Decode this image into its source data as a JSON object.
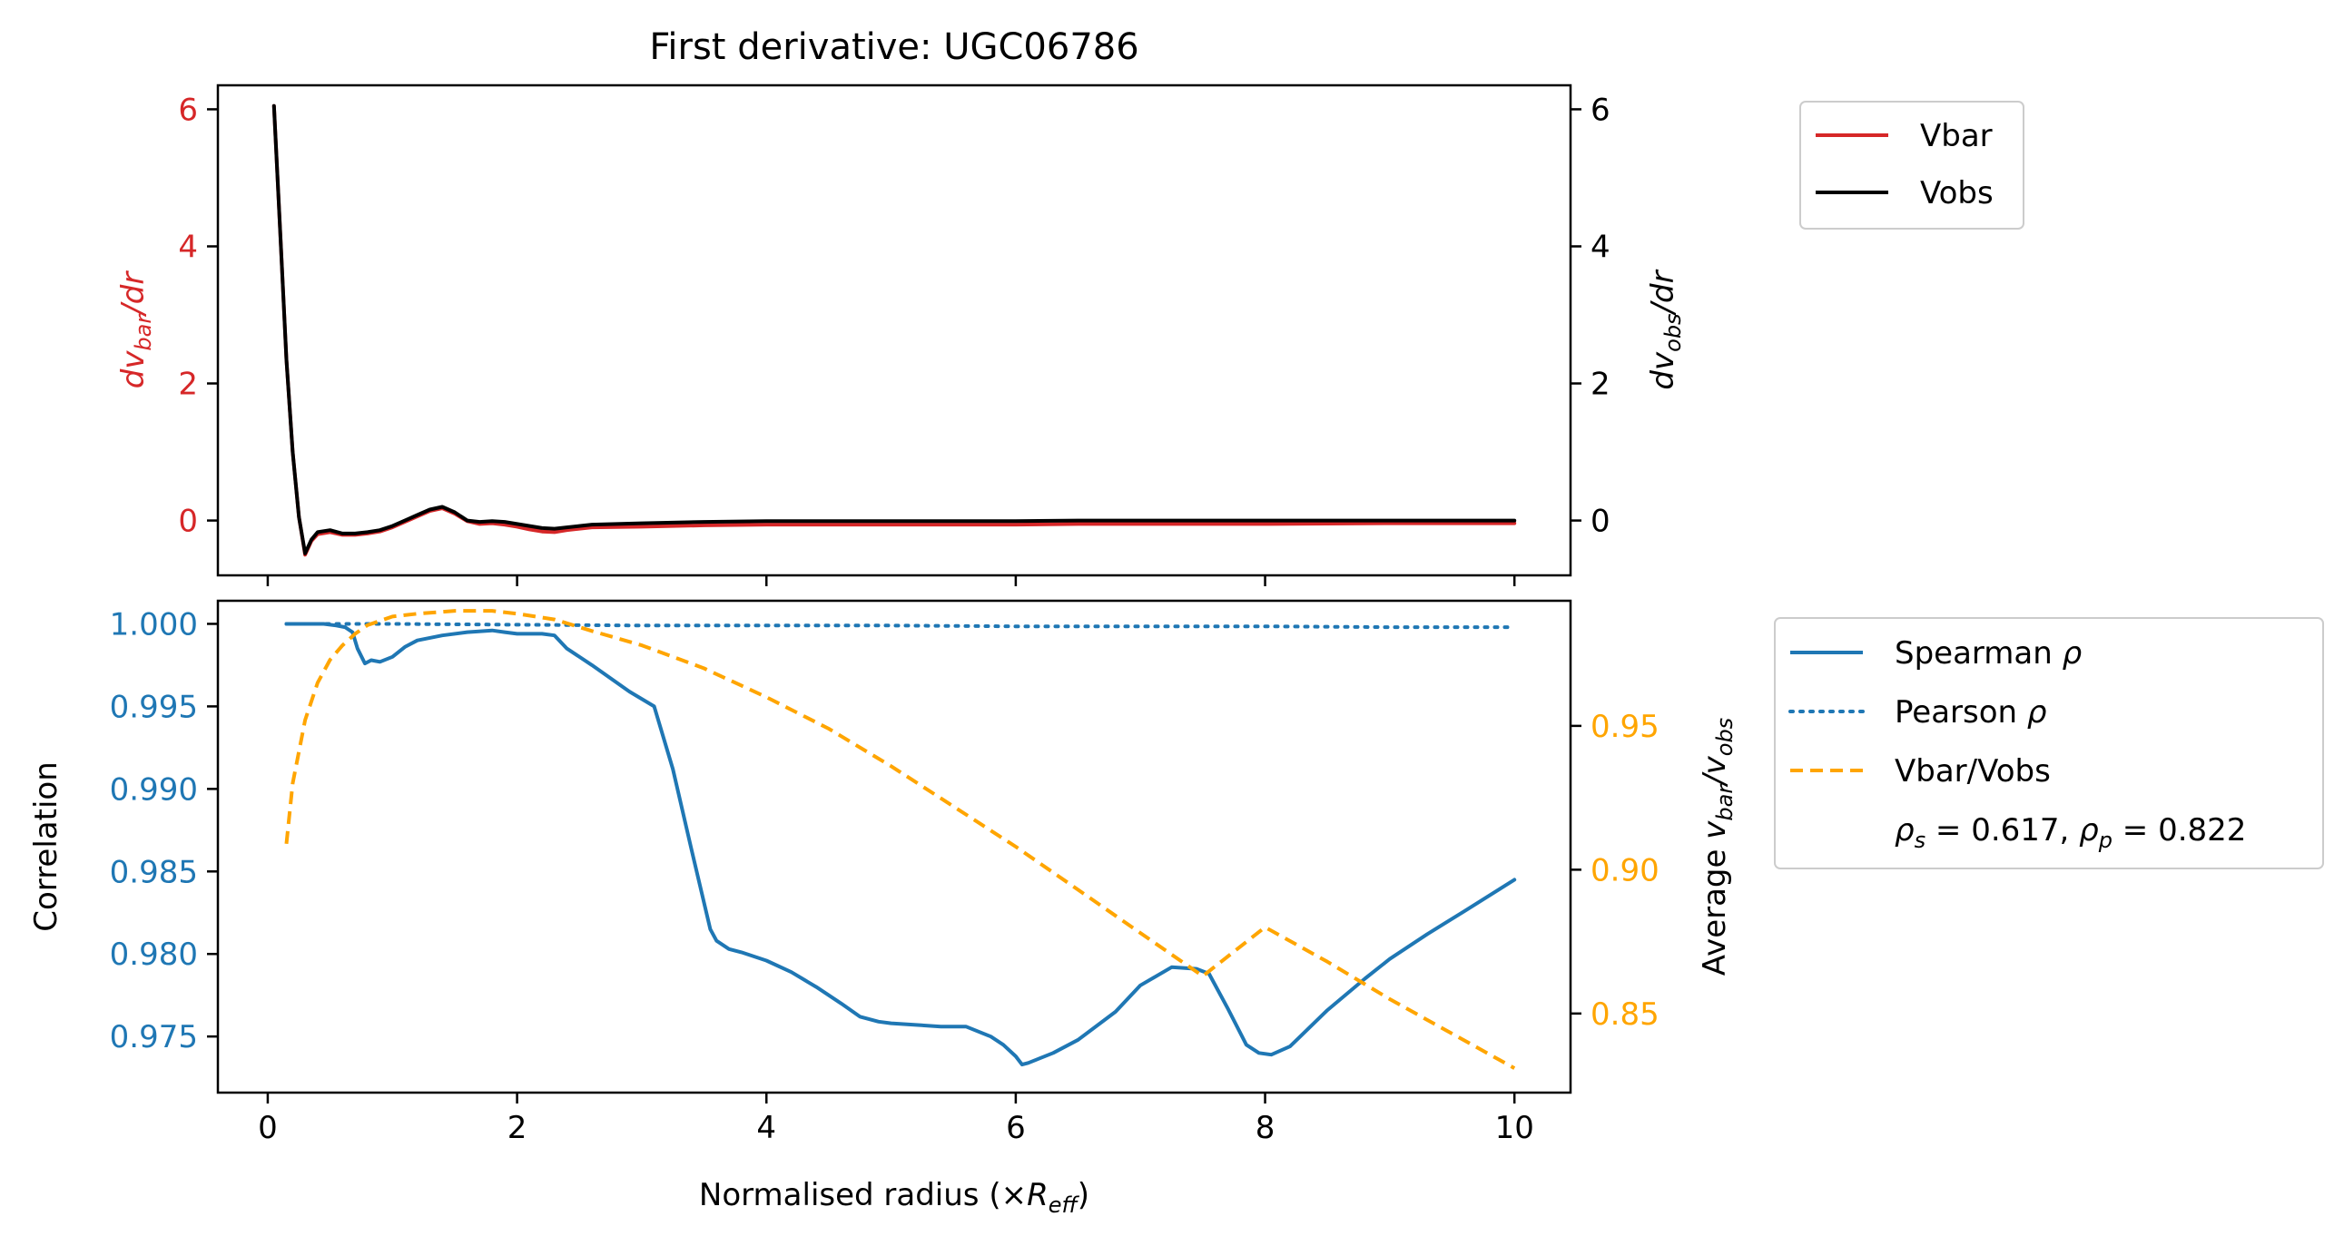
{
  "colors": {
    "vbar": "#d62728",
    "vobs": "#000000",
    "spearman": "#1f77b4",
    "pearson": "#1f77b4",
    "ratio": "#ffa500",
    "axis": "#000000"
  },
  "chart_data": [
    {
      "type": "line",
      "title": "First derivative: UGC06786",
      "ylabel_left": "dv_bar/dr",
      "ylabel_right": "dv_obs/dr",
      "xlim": [
        -0.4,
        10.45
      ],
      "ylim_left": [
        -0.8,
        6.35
      ],
      "ylim_right": [
        -0.8,
        6.35
      ],
      "xticks": [
        0,
        2,
        4,
        6,
        8,
        10
      ],
      "yticks_left": [
        0,
        2,
        4,
        6
      ],
      "yticks_left_labels": [
        "0",
        "2",
        "4",
        "6"
      ],
      "yticks_right": [
        0,
        2,
        4,
        6
      ],
      "yticks_right_labels": [
        "0",
        "2",
        "4",
        "6"
      ],
      "grid": false,
      "legend_placement": "outside upper right",
      "series": [
        {
          "name": "Vbar",
          "axis": "left",
          "x": [
            0.05,
            0.1,
            0.15,
            0.2,
            0.25,
            0.3,
            0.35,
            0.4,
            0.5,
            0.6,
            0.7,
            0.8,
            0.9,
            1.0,
            1.1,
            1.2,
            1.3,
            1.4,
            1.5,
            1.6,
            1.7,
            1.8,
            1.9,
            2.0,
            2.1,
            2.2,
            2.3,
            2.4,
            2.5,
            2.6,
            3.0,
            3.5,
            4.0,
            5.0,
            6.0,
            6.5,
            7.0,
            8.0,
            9.0,
            10.0
          ],
          "y": [
            6.05,
            4.2,
            2.35,
            1.0,
            0.05,
            -0.5,
            -0.3,
            -0.2,
            -0.17,
            -0.21,
            -0.21,
            -0.19,
            -0.16,
            -0.1,
            -0.02,
            0.06,
            0.14,
            0.18,
            0.1,
            -0.01,
            -0.05,
            -0.04,
            -0.06,
            -0.09,
            -0.13,
            -0.16,
            -0.17,
            -0.14,
            -0.12,
            -0.1,
            -0.09,
            -0.07,
            -0.06,
            -0.06,
            -0.06,
            -0.05,
            -0.05,
            -0.05,
            -0.04,
            -0.04
          ]
        },
        {
          "name": "Vobs",
          "axis": "right",
          "x": [
            0.05,
            0.1,
            0.15,
            0.2,
            0.25,
            0.3,
            0.35,
            0.4,
            0.5,
            0.6,
            0.7,
            0.8,
            0.9,
            1.0,
            1.1,
            1.2,
            1.3,
            1.4,
            1.5,
            1.6,
            1.7,
            1.8,
            1.9,
            2.0,
            2.1,
            2.2,
            2.3,
            2.4,
            2.5,
            2.6,
            3.0,
            3.5,
            4.0,
            5.0,
            6.0,
            6.5,
            7.0,
            8.0,
            9.0,
            10.0
          ],
          "y": [
            6.05,
            4.2,
            2.35,
            1.0,
            0.05,
            -0.48,
            -0.28,
            -0.17,
            -0.14,
            -0.19,
            -0.19,
            -0.17,
            -0.14,
            -0.08,
            0.0,
            0.08,
            0.16,
            0.2,
            0.12,
            0.0,
            -0.02,
            -0.01,
            -0.02,
            -0.05,
            -0.08,
            -0.11,
            -0.12,
            -0.1,
            -0.08,
            -0.06,
            -0.04,
            -0.02,
            -0.01,
            -0.01,
            -0.01,
            0.0,
            0.0,
            0.0,
            0.0,
            0.0
          ]
        }
      ]
    },
    {
      "type": "line",
      "xlabel": "Normalised radius (×R_eff)",
      "ylabel_left": "Correlation",
      "ylabel_right": "Average v_bar/v_obs",
      "xlim": [
        -0.4,
        10.45
      ],
      "ylim_left": [
        0.9716,
        1.0014
      ],
      "ylim_right": [
        0.8225,
        0.9935
      ],
      "xticks": [
        0,
        2,
        4,
        6,
        8,
        10
      ],
      "xtick_labels": [
        "0",
        "2",
        "4",
        "6",
        "8",
        "10"
      ],
      "yticks_left": [
        0.975,
        0.98,
        0.985,
        0.99,
        0.995,
        1.0
      ],
      "yticks_left_labels": [
        "0.975",
        "0.980",
        "0.985",
        "0.990",
        "0.995",
        "1.000"
      ],
      "yticks_right": [
        0.85,
        0.9,
        0.95
      ],
      "yticks_right_labels": [
        "0.85",
        "0.90",
        "0.95"
      ],
      "grid": false,
      "legend_placement": "outside right",
      "annotation": "ρ_s = 0.617, ρ_p = 0.822",
      "series": [
        {
          "name": "Spearman ρ",
          "axis": "left",
          "style": "solid",
          "x": [
            0.15,
            0.3,
            0.45,
            0.55,
            0.62,
            0.68,
            0.72,
            0.78,
            0.83,
            0.9,
            1.0,
            1.1,
            1.2,
            1.4,
            1.6,
            1.8,
            1.9,
            2.0,
            2.2,
            2.3,
            2.4,
            2.6,
            2.9,
            3.1,
            3.25,
            3.4,
            3.55,
            3.6,
            3.7,
            3.8,
            4.0,
            4.2,
            4.4,
            4.6,
            4.75,
            4.9,
            5.0,
            5.2,
            5.4,
            5.6,
            5.8,
            5.9,
            6.0,
            6.05,
            6.1,
            6.3,
            6.5,
            6.8,
            7.0,
            7.25,
            7.45,
            7.55,
            7.7,
            7.85,
            7.95,
            8.05,
            8.2,
            8.5,
            8.8,
            9.0,
            9.3,
            9.6,
            10.0
          ],
          "y": [
            1.0,
            1.0,
            1.0,
            0.9999,
            0.9998,
            0.9995,
            0.9985,
            0.9976,
            0.9978,
            0.9977,
            0.998,
            0.9986,
            0.999,
            0.9993,
            0.9995,
            0.9996,
            0.9995,
            0.9994,
            0.9994,
            0.9993,
            0.9985,
            0.9975,
            0.9959,
            0.995,
            0.9912,
            0.9863,
            0.9815,
            0.9808,
            0.9803,
            0.9801,
            0.9796,
            0.9789,
            0.978,
            0.977,
            0.9762,
            0.9759,
            0.9758,
            0.9757,
            0.9756,
            0.9756,
            0.975,
            0.9745,
            0.9738,
            0.9733,
            0.9734,
            0.974,
            0.9748,
            0.9765,
            0.9781,
            0.9792,
            0.9791,
            0.9788,
            0.9767,
            0.9745,
            0.974,
            0.9739,
            0.9744,
            0.9766,
            0.9785,
            0.9797,
            0.9812,
            0.9826,
            0.9845
          ]
        },
        {
          "name": "Pearson ρ",
          "axis": "left",
          "style": "dotted",
          "x": [
            0.15,
            1.0,
            2.0,
            3.0,
            4.0,
            5.0,
            6.0,
            7.0,
            8.0,
            9.0,
            10.0
          ],
          "y": [
            1.0,
            1.0,
            0.99995,
            0.9999,
            0.9999,
            0.9999,
            0.99985,
            0.99985,
            0.99985,
            0.9998,
            0.9998
          ]
        },
        {
          "name": "Vbar/Vobs",
          "axis": "right",
          "style": "dashed",
          "x": [
            0.15,
            0.2,
            0.3,
            0.4,
            0.5,
            0.6,
            0.7,
            0.8,
            1.0,
            1.2,
            1.5,
            1.8,
            2.0,
            2.3,
            2.6,
            3.0,
            3.5,
            4.0,
            4.5,
            5.0,
            5.5,
            6.0,
            6.5,
            7.0,
            7.5,
            8.0,
            8.5,
            9.0,
            9.5,
            10.0
          ],
          "y": [
            0.909,
            0.93,
            0.952,
            0.965,
            0.973,
            0.978,
            0.982,
            0.985,
            0.988,
            0.989,
            0.99,
            0.99,
            0.989,
            0.987,
            0.983,
            0.978,
            0.97,
            0.96,
            0.949,
            0.936,
            0.922,
            0.908,
            0.893,
            0.878,
            0.863,
            0.88,
            0.868,
            0.855,
            0.843,
            0.831
          ]
        }
      ]
    }
  ]
}
